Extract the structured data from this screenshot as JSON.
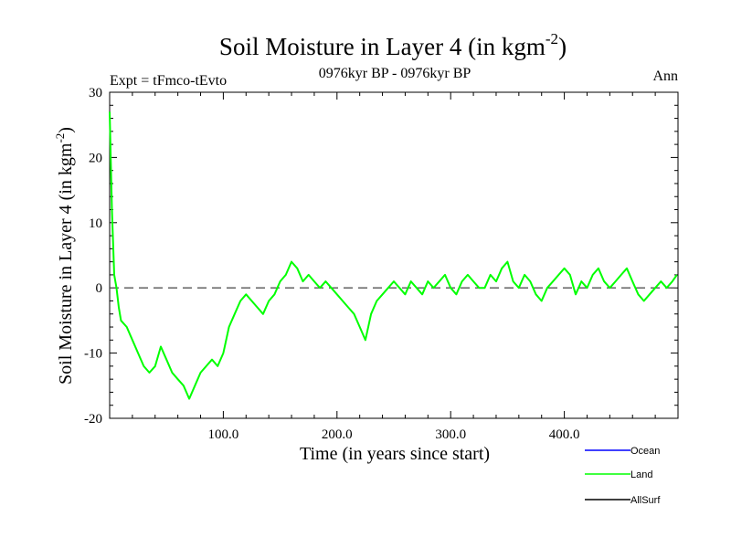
{
  "chart_data": {
    "type": "line",
    "title": "Soil Moisture in Layer 4 (in kgm",
    "title_sup": "-2",
    "title_close": ")",
    "subtitle_left": "Expt = tFmco-tEvto",
    "subtitle_center": "0976kyr BP - 0976kyr BP",
    "subtitle_right": "Ann",
    "xlabel": "Time (in years since start)",
    "ylabel": "Soil Moisture in Layer 4 (in kgm",
    "ylabel_sup": "-2",
    "ylabel_close": ")",
    "xlim": [
      0,
      500
    ],
    "ylim": [
      -20,
      30
    ],
    "xticks": [
      100,
      200,
      300,
      400
    ],
    "xtick_labels": [
      "100.0",
      "200.0",
      "300.0",
      "400.0"
    ],
    "yticks": [
      -20,
      -10,
      0,
      10,
      20,
      30
    ],
    "ytick_labels": [
      "-20",
      "-10",
      "0",
      "10",
      "20",
      "30"
    ],
    "reference_line": 0,
    "legend": [
      {
        "name": "Ocean",
        "color": "#0000ff"
      },
      {
        "name": "Land",
        "color": "#00ff00"
      },
      {
        "name": "AllSurf",
        "color": "#000000"
      }
    ],
    "series": [
      {
        "name": "Land",
        "color": "#00ff00",
        "x": [
          0,
          2,
          4,
          6,
          8,
          10,
          15,
          20,
          25,
          30,
          35,
          40,
          45,
          50,
          55,
          60,
          65,
          70,
          75,
          80,
          85,
          90,
          95,
          100,
          105,
          110,
          115,
          120,
          125,
          130,
          135,
          140,
          145,
          150,
          155,
          160,
          165,
          170,
          175,
          180,
          185,
          190,
          195,
          200,
          205,
          210,
          215,
          220,
          225,
          230,
          235,
          240,
          245,
          250,
          255,
          260,
          265,
          270,
          275,
          280,
          285,
          290,
          295,
          300,
          305,
          310,
          315,
          320,
          325,
          330,
          335,
          340,
          345,
          350,
          355,
          360,
          365,
          370,
          375,
          380,
          385,
          390,
          395,
          400,
          405,
          410,
          415,
          420,
          425,
          430,
          435,
          440,
          445,
          450,
          455,
          460,
          465,
          470,
          475,
          480,
          485,
          490,
          495,
          499
        ],
        "values": [
          27,
          12,
          2,
          0,
          -3,
          -5,
          -6,
          -8,
          -10,
          -12,
          -13,
          -12,
          -9,
          -11,
          -13,
          -14,
          -15,
          -17,
          -15,
          -13,
          -12,
          -11,
          -12,
          -10,
          -6,
          -4,
          -2,
          -1,
          -2,
          -3,
          -4,
          -2,
          -1,
          1,
          2,
          4,
          3,
          1,
          2,
          1,
          0,
          1,
          0,
          -1,
          -2,
          -3,
          -4,
          -6,
          -8,
          -4,
          -2,
          -1,
          0,
          1,
          0,
          -1,
          1,
          0,
          -1,
          1,
          0,
          1,
          2,
          0,
          -1,
          1,
          2,
          1,
          0,
          0,
          2,
          1,
          3,
          4,
          1,
          0,
          2,
          1,
          -1,
          -2,
          0,
          1,
          2,
          3,
          2,
          -1,
          1,
          0,
          2,
          3,
          1,
          0,
          1,
          2,
          3,
          1,
          -1,
          -2,
          -1,
          0,
          1,
          0,
          1,
          2
        ]
      }
    ]
  }
}
